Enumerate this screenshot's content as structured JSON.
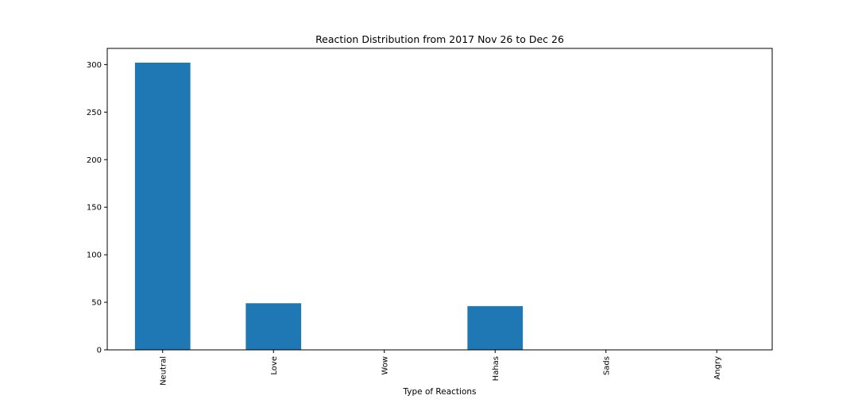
{
  "chart_data": {
    "type": "bar",
    "title": "Reaction Distribution from 2017 Nov 26 to Dec 26",
    "xlabel": "Type of Reactions",
    "ylabel": "",
    "categories": [
      "Neutral",
      "Love",
      "Wow",
      "Hahas",
      "Sads",
      "Angry"
    ],
    "values": [
      302,
      49,
      0,
      46,
      0,
      0
    ],
    "ylim": [
      0,
      317
    ],
    "yticks": [
      0,
      50,
      100,
      150,
      200,
      250,
      300
    ],
    "bar_color": "#1f77b4",
    "grid": false,
    "legend": "none"
  }
}
